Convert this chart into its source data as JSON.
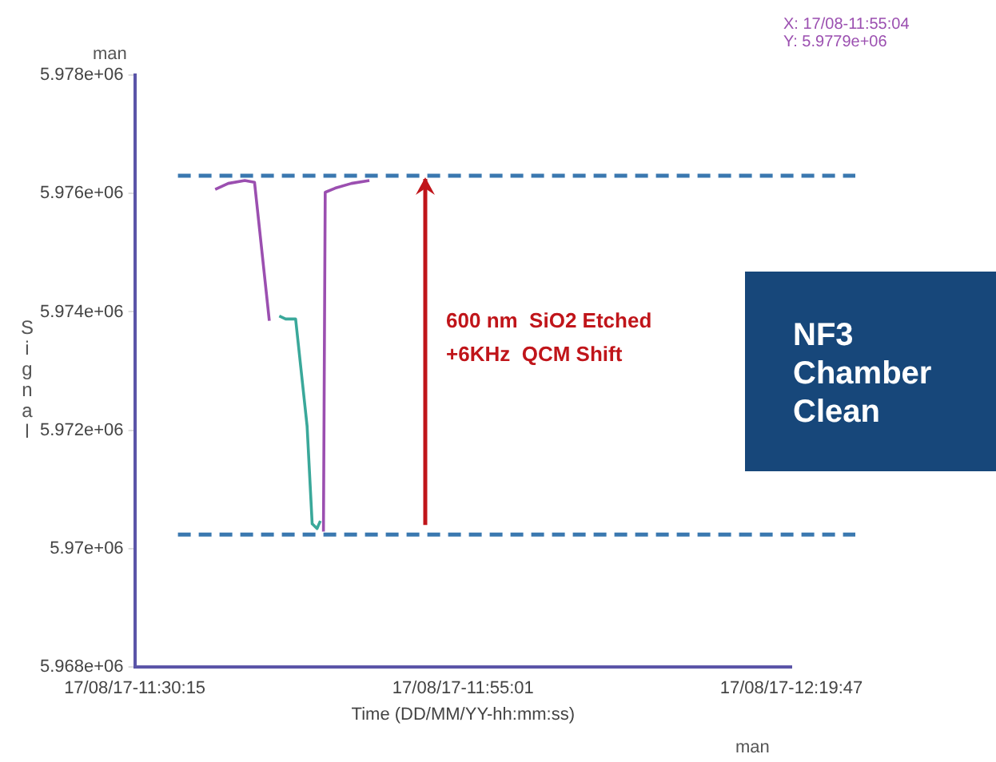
{
  "chart_data": {
    "type": "line",
    "xlabel": "Time (DD/MM/YY-hh:mm:ss)",
    "ylabel": "Signal",
    "xlim": [
      "--08-17T11:30:15",
      "--08-17T12:19:47"
    ],
    "xticks": [
      {
        "value": "--08-17T11:30:15",
        "label": "17/08/17-11:30:15"
      },
      {
        "value": "--08-17T11:55:01",
        "label": "17/08/17-11:55:01"
      },
      {
        "value": "--08-17T12:19:47",
        "label": "17/08/17-12:19:47"
      }
    ],
    "ylim": [
      5968000,
      5978000
    ],
    "yticks": [
      {
        "value": 5968000,
        "label": "5.968e+06"
      },
      {
        "value": 5970000,
        "label": "5.97e+06"
      },
      {
        "value": 5972000,
        "label": "5.972e+06"
      },
      {
        "value": 5974000,
        "label": "5.974e+06"
      },
      {
        "value": 5976000,
        "label": "5.976e+06"
      },
      {
        "value": 5978000,
        "label": "5.978e+06"
      }
    ],
    "grid": false,
    "legend": false,
    "marker": "none",
    "line_style": "solid",
    "series": [
      {
        "color": "#9b4fb0",
        "x": [
          "--08-17T11:36:19",
          "--08-17T11:37:18",
          "--08-17T11:38:33",
          "--08-17T11:39:17",
          "--08-17T11:40:24"
        ],
        "values": [
          5976070,
          5976170,
          5976220,
          5976190,
          5973850
        ]
      },
      {
        "color": "#3aa89a",
        "x": [
          "--08-17T11:41:09",
          "--08-17T11:41:38",
          "--08-17T11:42:23",
          "--08-17T11:43:15",
          "--08-17T11:43:38",
          "--08-17T11:44:00",
          "--08-17T11:44:15"
        ],
        "values": [
          5973930,
          5973880,
          5973880,
          5972070,
          5970420,
          5970340,
          5970470
        ]
      },
      {
        "color": "#9b4fb0",
        "x": [
          "--08-17T11:44:29",
          "--08-17T11:44:37",
          "--08-17T11:45:22",
          "--08-17T11:46:36",
          "--08-17T11:47:57"
        ],
        "values": [
          5970290,
          5976020,
          5976090,
          5976170,
          5976220
        ]
      }
    ],
    "ref_lines": [
      {
        "axis": "y",
        "value": 5976300,
        "color": "#3a78b0",
        "line_style": "dashed"
      },
      {
        "axis": "y",
        "value": 5970240,
        "color": "#3a78b0",
        "line_style": "dashed"
      }
    ],
    "annotations": [
      "man",
      "man",
      "X: 17/08-11:55:04",
      "Y: 5.9779e+06",
      "NF3 Chamber Clean",
      "600 nm  SiO2 Etched",
      "+6KHz  QCM Shift"
    ]
  }
}
